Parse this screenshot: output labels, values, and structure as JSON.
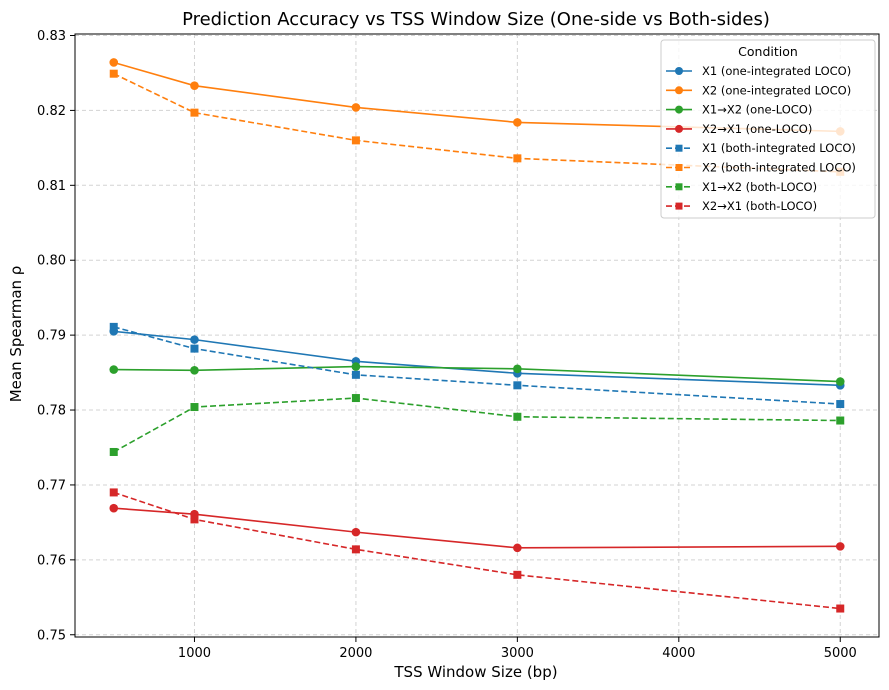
{
  "chart_data": {
    "type": "line",
    "title": "Prediction Accuracy vs TSS Window Size (One-side vs Both-sides)",
    "xlabel": "TSS Window Size (bp)",
    "ylabel": "Mean Spearman ρ",
    "xlim": [
      260,
      5240
    ],
    "ylim": [
      0.7497,
      0.8302
    ],
    "xticks": [
      1000,
      2000,
      3000,
      4000,
      5000
    ],
    "xtick_labels": [
      "1000",
      "2000",
      "3000",
      "4000",
      "5000"
    ],
    "yticks": [
      0.75,
      0.76,
      0.77,
      0.78,
      0.79,
      0.8,
      0.81,
      0.82,
      0.83
    ],
    "ytick_labels": [
      "0.75",
      "0.76",
      "0.77",
      "0.78",
      "0.79",
      "0.80",
      "0.81",
      "0.82",
      "0.83"
    ],
    "grid": true,
    "legend": {
      "title": "Condition",
      "position": "top-right"
    },
    "x": [
      500,
      1000,
      2000,
      3000,
      5000
    ],
    "series": [
      {
        "name": "X1 (one-integrated LOCO)",
        "color": "#1f77b4",
        "style": "solid",
        "marker": "circle",
        "values": [
          0.7905,
          0.7894,
          0.7865,
          0.7849,
          0.7833
        ]
      },
      {
        "name": "X2 (one-integrated LOCO)",
        "color": "#ff7f0e",
        "style": "solid",
        "marker": "circle",
        "values": [
          0.8264,
          0.8233,
          0.8204,
          0.8184,
          0.8172
        ]
      },
      {
        "name": "X1→X2 (one-LOCO)",
        "color": "#2ca02c",
        "style": "solid",
        "marker": "circle",
        "values": [
          0.7854,
          0.7853,
          0.7858,
          0.7855,
          0.7838
        ]
      },
      {
        "name": "X2→X1 (one-LOCO)",
        "color": "#d62728",
        "style": "solid",
        "marker": "circle",
        "values": [
          0.7669,
          0.7661,
          0.7637,
          0.7616,
          0.7618
        ]
      },
      {
        "name": "X1 (both-integrated LOCO)",
        "color": "#1f77b4",
        "style": "dashed",
        "marker": "square",
        "values": [
          0.7911,
          0.7882,
          0.7847,
          0.7833,
          0.7808
        ]
      },
      {
        "name": "X2 (both-integrated LOCO)",
        "color": "#ff7f0e",
        "style": "dashed",
        "marker": "square",
        "values": [
          0.8249,
          0.8197,
          0.816,
          0.8136,
          0.8118
        ]
      },
      {
        "name": "X1→X2 (both-LOCO)",
        "color": "#2ca02c",
        "style": "dashed",
        "marker": "square",
        "values": [
          0.7744,
          0.7804,
          0.7816,
          0.7791,
          0.7786
        ]
      },
      {
        "name": "X2→X1 (both-LOCO)",
        "color": "#d62728",
        "style": "dashed",
        "marker": "square",
        "values": [
          0.769,
          0.7654,
          0.7614,
          0.758,
          0.7535
        ]
      }
    ]
  }
}
